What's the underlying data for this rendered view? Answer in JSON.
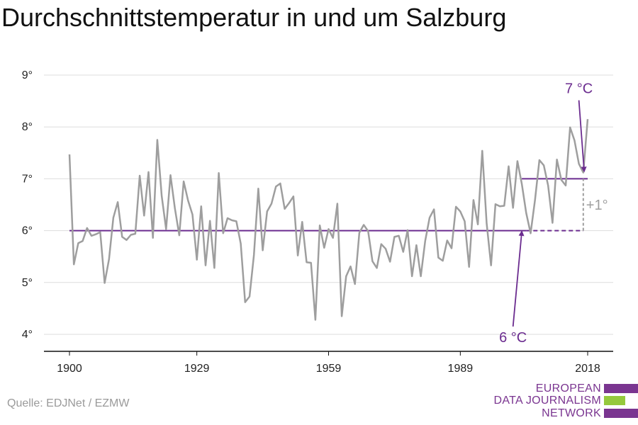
{
  "title": "Durchschnittstemperatur in und um Salzburg",
  "source": "Quelle: EDJNet / EZMW",
  "logo": {
    "lines": [
      "EUROPEAN",
      "DATA JOURNALISM",
      "NETWORK"
    ],
    "colors": [
      "#7a3590",
      "#95c93d",
      "#7a3590"
    ]
  },
  "colors": {
    "series": "#9e9e9e",
    "reference": "#6b2c8f",
    "delta": "#9e9e9e",
    "grid": "#dddddd",
    "axis": "#111111"
  },
  "chart_data": {
    "type": "line",
    "title": "Durchschnittstemperatur in und um Salzburg",
    "xlabel": "",
    "ylabel": "",
    "xlim": [
      1900,
      2018
    ],
    "ylim": [
      4,
      9
    ],
    "x_ticks": [
      1900,
      1929,
      1959,
      1989,
      2018
    ],
    "y_ticks": [
      4,
      5,
      6,
      7,
      8,
      9
    ],
    "y_tick_labels": [
      "4°",
      "5°",
      "6°",
      "7°",
      "8°",
      "9°"
    ],
    "grid": "horizontal",
    "series": [
      {
        "name": "",
        "x": [
          1900,
          1901,
          1902,
          1903,
          1904,
          1905,
          1906,
          1907,
          1908,
          1909,
          1910,
          1911,
          1912,
          1913,
          1914,
          1915,
          1916,
          1917,
          1918,
          1919,
          1920,
          1921,
          1922,
          1923,
          1924,
          1925,
          1926,
          1927,
          1928,
          1929,
          1930,
          1931,
          1932,
          1933,
          1934,
          1935,
          1936,
          1937,
          1938,
          1939,
          1940,
          1941,
          1942,
          1943,
          1944,
          1945,
          1946,
          1947,
          1948,
          1949,
          1950,
          1951,
          1952,
          1953,
          1954,
          1955,
          1956,
          1957,
          1958,
          1959,
          1960,
          1961,
          1962,
          1963,
          1964,
          1965,
          1966,
          1967,
          1968,
          1969,
          1970,
          1971,
          1972,
          1973,
          1974,
          1975,
          1976,
          1977,
          1978,
          1979,
          1980,
          1981,
          1982,
          1983,
          1984,
          1985,
          1986,
          1987,
          1988,
          1989,
          1990,
          1991,
          1992,
          1993,
          1994,
          1995,
          1996,
          1997,
          1998,
          1999,
          2000,
          2001,
          2002,
          2003,
          2004,
          2005,
          2006,
          2007,
          2008,
          2009,
          2010,
          2011,
          2012,
          2013,
          2014,
          2015,
          2016,
          2017,
          2018
        ],
        "values": [
          7.47,
          5.35,
          5.76,
          5.8,
          6.05,
          5.9,
          5.93,
          5.97,
          4.99,
          5.45,
          6.25,
          6.55,
          5.88,
          5.82,
          5.92,
          5.94,
          7.06,
          6.29,
          7.13,
          5.86,
          7.75,
          6.67,
          6.03,
          7.07,
          6.43,
          5.91,
          6.95,
          6.58,
          6.31,
          5.44,
          6.47,
          5.33,
          6.19,
          5.28,
          7.11,
          5.95,
          6.24,
          6.2,
          6.18,
          5.75,
          4.62,
          4.73,
          5.53,
          6.81,
          5.62,
          6.37,
          6.52,
          6.85,
          6.91,
          6.42,
          6.53,
          6.66,
          5.52,
          6.17,
          5.39,
          5.38,
          4.28,
          6.1,
          5.67,
          6.03,
          5.86,
          6.52,
          4.35,
          5.12,
          5.31,
          4.97,
          5.96,
          6.11,
          5.99,
          5.41,
          5.28,
          5.74,
          5.65,
          5.4,
          5.88,
          5.9,
          5.59,
          6.01,
          5.12,
          5.72,
          5.12,
          5.8,
          6.25,
          6.41,
          5.48,
          5.42,
          5.81,
          5.66,
          6.46,
          6.37,
          6.18,
          5.3,
          6.59,
          6.12,
          7.54,
          6.14,
          5.33,
          6.51,
          6.47,
          6.48,
          7.24,
          6.44,
          7.34,
          6.9,
          6.34,
          5.95,
          6.59,
          7.36,
          7.26,
          6.87,
          6.15,
          7.37,
          6.98,
          6.87,
          7.99,
          7.74,
          7.29,
          7.12,
          8.15
        ]
      }
    ],
    "reference_lines": [
      {
        "value": 6,
        "from": 1900,
        "to": 2004,
        "style": "solid"
      },
      {
        "value": 6,
        "from": 2004,
        "to": 2017,
        "style": "dashed"
      },
      {
        "value": 7,
        "from": 2003,
        "to": 2018,
        "style": "solid"
      }
    ],
    "delta_marker": {
      "x": 2017,
      "from": 6,
      "to": 7,
      "label": "+1°"
    },
    "annotations": [
      {
        "label": "7 °C",
        "text_x": 2016,
        "text_y": 8.65,
        "arrow_to_x": 2017.2,
        "arrow_to_y": 7.15
      },
      {
        "label": "6 °C",
        "text_x": 2001,
        "text_y": 3.85,
        "arrow_to_x": 2003,
        "arrow_to_y": 5.98
      }
    ]
  }
}
